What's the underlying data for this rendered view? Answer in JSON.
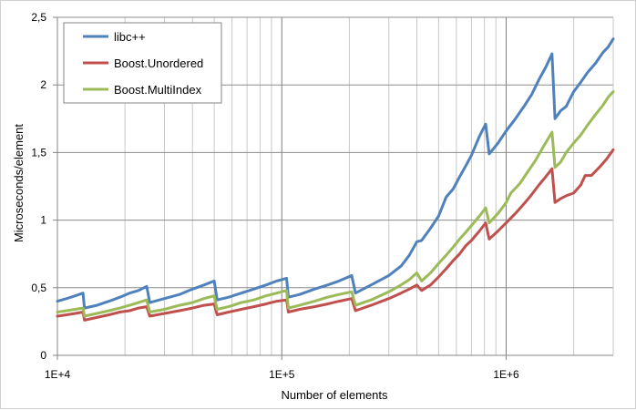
{
  "chart_data": {
    "type": "line",
    "title": "",
    "xlabel": "Number of elements",
    "ylabel": "Microseconds/element",
    "xscale": "log",
    "xlim": [
      10000,
      3000000
    ],
    "ylim": [
      0,
      2.5
    ],
    "grid": {
      "x_major": true,
      "x_minor": true,
      "y_major": true
    },
    "legend_position": "top-left",
    "x_ticks": [
      {
        "value": 10000,
        "label": "1E+4"
      },
      {
        "value": 100000,
        "label": "1E+5"
      },
      {
        "value": 1000000,
        "label": "1E+6"
      }
    ],
    "y_ticks": [
      {
        "value": 0,
        "label": "0"
      },
      {
        "value": 0.5,
        "label": "0,5"
      },
      {
        "value": 1,
        "label": "1"
      },
      {
        "value": 1.5,
        "label": "1,5"
      },
      {
        "value": 2,
        "label": "2"
      },
      {
        "value": 2.5,
        "label": "2,5"
      }
    ],
    "series": [
      {
        "name": "libc++",
        "color": "#4f81bd",
        "points": [
          [
            10000,
            0.4
          ],
          [
            11000,
            0.42
          ],
          [
            12000,
            0.44
          ],
          [
            13000,
            0.46
          ],
          [
            13200,
            0.35
          ],
          [
            15000,
            0.37
          ],
          [
            17000,
            0.4
          ],
          [
            19000,
            0.43
          ],
          [
            21000,
            0.46
          ],
          [
            23000,
            0.48
          ],
          [
            25000,
            0.51
          ],
          [
            25800,
            0.39
          ],
          [
            30000,
            0.42
          ],
          [
            35000,
            0.45
          ],
          [
            40000,
            0.49
          ],
          [
            45000,
            0.52
          ],
          [
            50000,
            0.55
          ],
          [
            51500,
            0.41
          ],
          [
            58000,
            0.43
          ],
          [
            66000,
            0.46
          ],
          [
            75000,
            0.49
          ],
          [
            85000,
            0.52
          ],
          [
            95000,
            0.55
          ],
          [
            105000,
            0.57
          ],
          [
            107000,
            0.43
          ],
          [
            120000,
            0.45
          ],
          [
            140000,
            0.49
          ],
          [
            160000,
            0.52
          ],
          [
            180000,
            0.55
          ],
          [
            205000,
            0.59
          ],
          [
            213000,
            0.46
          ],
          [
            250000,
            0.52
          ],
          [
            300000,
            0.59
          ],
          [
            340000,
            0.66
          ],
          [
            370000,
            0.74
          ],
          [
            400000,
            0.84
          ],
          [
            420000,
            0.85
          ],
          [
            460000,
            0.94
          ],
          [
            500000,
            1.03
          ],
          [
            540000,
            1.17
          ],
          [
            580000,
            1.23
          ],
          [
            620000,
            1.32
          ],
          [
            660000,
            1.4
          ],
          [
            700000,
            1.48
          ],
          [
            760000,
            1.62
          ],
          [
            810000,
            1.71
          ],
          [
            840000,
            1.49
          ],
          [
            920000,
            1.57
          ],
          [
            1000000,
            1.66
          ],
          [
            1100000,
            1.75
          ],
          [
            1200000,
            1.84
          ],
          [
            1300000,
            1.93
          ],
          [
            1400000,
            2.04
          ],
          [
            1500000,
            2.13
          ],
          [
            1600000,
            2.23
          ],
          [
            1650000,
            1.75
          ],
          [
            1750000,
            1.81
          ],
          [
            1850000,
            1.84
          ],
          [
            2000000,
            1.95
          ],
          [
            2150000,
            2.02
          ],
          [
            2300000,
            2.09
          ],
          [
            2500000,
            2.16
          ],
          [
            2700000,
            2.24
          ],
          [
            2850000,
            2.28
          ],
          [
            3000000,
            2.34
          ]
        ]
      },
      {
        "name": "Boost.Unordered",
        "color": "#c0504d",
        "points": [
          [
            10000,
            0.29
          ],
          [
            11000,
            0.3
          ],
          [
            12000,
            0.31
          ],
          [
            13000,
            0.32
          ],
          [
            13200,
            0.26
          ],
          [
            15000,
            0.28
          ],
          [
            17000,
            0.3
          ],
          [
            19000,
            0.32
          ],
          [
            21000,
            0.33
          ],
          [
            23000,
            0.35
          ],
          [
            25000,
            0.36
          ],
          [
            25800,
            0.29
          ],
          [
            30000,
            0.31
          ],
          [
            35000,
            0.33
          ],
          [
            40000,
            0.35
          ],
          [
            45000,
            0.37
          ],
          [
            50000,
            0.38
          ],
          [
            51500,
            0.3
          ],
          [
            58000,
            0.32
          ],
          [
            66000,
            0.34
          ],
          [
            75000,
            0.36
          ],
          [
            85000,
            0.38
          ],
          [
            95000,
            0.4
          ],
          [
            105000,
            0.41
          ],
          [
            107000,
            0.32
          ],
          [
            120000,
            0.34
          ],
          [
            140000,
            0.36
          ],
          [
            160000,
            0.38
          ],
          [
            180000,
            0.4
          ],
          [
            205000,
            0.42
          ],
          [
            213000,
            0.33
          ],
          [
            250000,
            0.37
          ],
          [
            300000,
            0.42
          ],
          [
            340000,
            0.46
          ],
          [
            370000,
            0.49
          ],
          [
            400000,
            0.52
          ],
          [
            420000,
            0.48
          ],
          [
            460000,
            0.52
          ],
          [
            500000,
            0.58
          ],
          [
            540000,
            0.64
          ],
          [
            580000,
            0.7
          ],
          [
            620000,
            0.75
          ],
          [
            660000,
            0.81
          ],
          [
            700000,
            0.85
          ],
          [
            760000,
            0.92
          ],
          [
            810000,
            0.98
          ],
          [
            840000,
            0.86
          ],
          [
            920000,
            0.92
          ],
          [
            1000000,
            0.98
          ],
          [
            1100000,
            1.05
          ],
          [
            1200000,
            1.12
          ],
          [
            1300000,
            1.19
          ],
          [
            1400000,
            1.26
          ],
          [
            1500000,
            1.32
          ],
          [
            1600000,
            1.38
          ],
          [
            1650000,
            1.13
          ],
          [
            1750000,
            1.16
          ],
          [
            1850000,
            1.18
          ],
          [
            2000000,
            1.2
          ],
          [
            2150000,
            1.26
          ],
          [
            2250000,
            1.33
          ],
          [
            2400000,
            1.33
          ],
          [
            2600000,
            1.39
          ],
          [
            2800000,
            1.45
          ],
          [
            3000000,
            1.52
          ]
        ]
      },
      {
        "name": "Boost.MultiIndex",
        "color": "#9bbb59",
        "points": [
          [
            10000,
            0.32
          ],
          [
            11000,
            0.33
          ],
          [
            12000,
            0.34
          ],
          [
            13000,
            0.35
          ],
          [
            13200,
            0.29
          ],
          [
            15000,
            0.31
          ],
          [
            17000,
            0.33
          ],
          [
            19000,
            0.35
          ],
          [
            21000,
            0.37
          ],
          [
            23000,
            0.39
          ],
          [
            25000,
            0.41
          ],
          [
            25800,
            0.32
          ],
          [
            30000,
            0.34
          ],
          [
            35000,
            0.37
          ],
          [
            40000,
            0.39
          ],
          [
            45000,
            0.42
          ],
          [
            50000,
            0.44
          ],
          [
            51500,
            0.34
          ],
          [
            58000,
            0.36
          ],
          [
            66000,
            0.39
          ],
          [
            75000,
            0.41
          ],
          [
            85000,
            0.44
          ],
          [
            95000,
            0.46
          ],
          [
            105000,
            0.48
          ],
          [
            107000,
            0.35
          ],
          [
            120000,
            0.37
          ],
          [
            140000,
            0.4
          ],
          [
            160000,
            0.43
          ],
          [
            180000,
            0.45
          ],
          [
            205000,
            0.47
          ],
          [
            213000,
            0.37
          ],
          [
            250000,
            0.41
          ],
          [
            300000,
            0.47
          ],
          [
            340000,
            0.52
          ],
          [
            370000,
            0.56
          ],
          [
            400000,
            0.61
          ],
          [
            420000,
            0.55
          ],
          [
            460000,
            0.61
          ],
          [
            500000,
            0.68
          ],
          [
            540000,
            0.74
          ],
          [
            580000,
            0.8
          ],
          [
            620000,
            0.86
          ],
          [
            660000,
            0.91
          ],
          [
            700000,
            0.96
          ],
          [
            760000,
            1.03
          ],
          [
            810000,
            1.09
          ],
          [
            840000,
            0.98
          ],
          [
            920000,
            1.05
          ],
          [
            1000000,
            1.13
          ],
          [
            1050000,
            1.2
          ],
          [
            1150000,
            1.27
          ],
          [
            1250000,
            1.36
          ],
          [
            1350000,
            1.44
          ],
          [
            1450000,
            1.53
          ],
          [
            1600000,
            1.65
          ],
          [
            1650000,
            1.39
          ],
          [
            1750000,
            1.43
          ],
          [
            1850000,
            1.5
          ],
          [
            2000000,
            1.57
          ],
          [
            2150000,
            1.63
          ],
          [
            2300000,
            1.7
          ],
          [
            2500000,
            1.78
          ],
          [
            2700000,
            1.85
          ],
          [
            2850000,
            1.91
          ],
          [
            3000000,
            1.95
          ]
        ]
      }
    ]
  }
}
